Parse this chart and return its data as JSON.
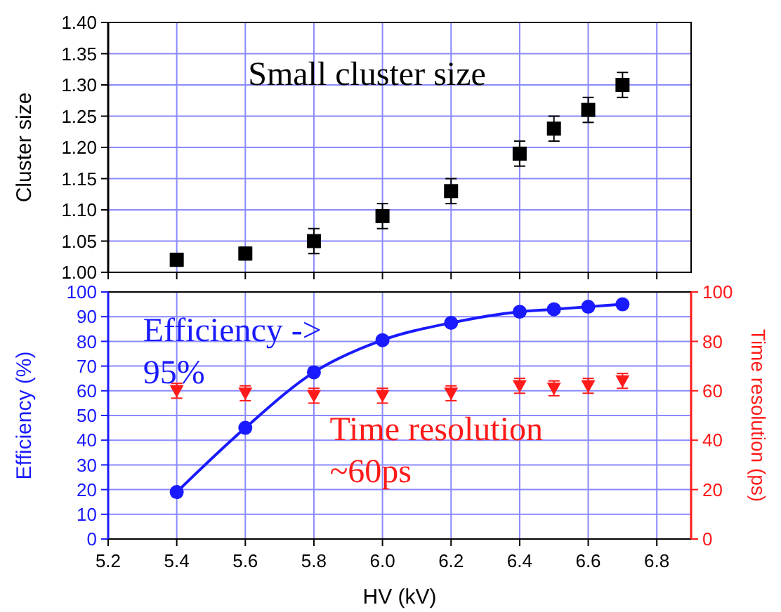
{
  "chart_data": [
    {
      "type": "scatter",
      "ylabel": "Cluster size",
      "x": [
        5.4,
        5.6,
        5.8,
        6.0,
        6.2,
        6.4,
        6.5,
        6.6,
        6.7
      ],
      "values": [
        1.02,
        1.03,
        1.05,
        1.09,
        1.13,
        1.19,
        1.23,
        1.26,
        1.3
      ],
      "errors": [
        0.01,
        0.01,
        0.02,
        0.02,
        0.02,
        0.02,
        0.02,
        0.02,
        0.02
      ],
      "color": "#000000",
      "marker": "square",
      "xlim": [
        5.2,
        6.9
      ],
      "xticks": [
        5.2,
        5.4,
        5.6,
        5.8,
        6.0,
        6.2,
        6.4,
        6.6,
        6.8
      ],
      "ylim": [
        1.0,
        1.4
      ],
      "yticks": [
        {
          "value": 1.0,
          "label": "1.00"
        },
        {
          "value": 1.05,
          "label": "1.05"
        },
        {
          "value": 1.1,
          "label": "1.10"
        },
        {
          "value": 1.15,
          "label": "1.15"
        },
        {
          "value": 1.2,
          "label": "1.20"
        },
        {
          "value": 1.25,
          "label": "1.25"
        },
        {
          "value": 1.3,
          "label": "1.30"
        },
        {
          "value": 1.35,
          "label": "1.35"
        },
        {
          "value": 1.4,
          "label": "1.40"
        }
      ],
      "tick_labels": "y",
      "grid": true,
      "annotations": [
        "Small cluster size"
      ]
    },
    {
      "type": "line",
      "xlabel": "HV (kV)",
      "ylabel": "Efficiency (%)",
      "y2label": "Time resolution (ps)",
      "x": [
        5.4,
        5.6,
        5.8,
        6.0,
        6.2,
        6.4,
        6.5,
        6.6,
        6.7
      ],
      "xlim": [
        5.2,
        6.9
      ],
      "xticks": [
        {
          "value": 5.2,
          "label": "5.2"
        },
        {
          "value": 5.4,
          "label": "5.4"
        },
        {
          "value": 5.6,
          "label": "5.6"
        },
        {
          "value": 5.8,
          "label": "5.8"
        },
        {
          "value": 6.0,
          "label": "6.0"
        },
        {
          "value": 6.2,
          "label": "6.2"
        },
        {
          "value": 6.4,
          "label": "6.4"
        },
        {
          "value": 6.6,
          "label": "6.6"
        },
        {
          "value": 6.8,
          "label": "6.8"
        }
      ],
      "ylim": [
        0,
        100
      ],
      "yticks": [
        0,
        10,
        20,
        30,
        40,
        50,
        60,
        70,
        80,
        90,
        100
      ],
      "y2lim": [
        0,
        100
      ],
      "y2ticks": [
        0,
        20,
        40,
        60,
        80,
        100
      ],
      "grid": true,
      "series": [
        {
          "color": "#1a1aff",
          "marker": "circle",
          "values": [
            19,
            45,
            67.5,
            80.5,
            87.5,
            92,
            93,
            94,
            95
          ]
        },
        {
          "type": "scatter",
          "axis": "y2",
          "color": "#ff1a1a",
          "marker": "triangle",
          "values": [
            60,
            59,
            58,
            58,
            59,
            62,
            61,
            62,
            64
          ],
          "errors": [
            3,
            3,
            3,
            3,
            3,
            3,
            3,
            3,
            3
          ]
        }
      ],
      "annotations": [
        "Efficiency ->\n95%",
        "Time resolution\n~60ps"
      ]
    }
  ]
}
